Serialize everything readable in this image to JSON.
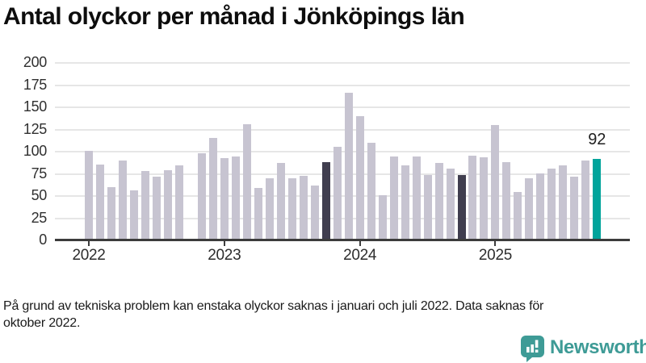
{
  "title": "Antal olyckor per månad i Jönköpings län",
  "footer": {
    "line1": "På grund av tekniska problem kan enstaka olyckor saknas i januari och juli 2022. Data saknas för",
    "line2": "oktober 2022."
  },
  "logo": {
    "name": "Newsworthy"
  },
  "colors": {
    "bar_default": "#c7c4d1",
    "bar_dark": "#403e4f",
    "bar_teal": "#00a49b",
    "axis": "#3c3c3c",
    "grid": "#e6e6e6",
    "logo_teal": "#3e9b96"
  },
  "chart_data": {
    "type": "bar",
    "title": "Antal olyckor per månad i Jönköpings län",
    "x": [
      "2022-01",
      "2022-02",
      "2022-03",
      "2022-04",
      "2022-05",
      "2022-06",
      "2022-07",
      "2022-08",
      "2022-09",
      "2022-10",
      "2022-11",
      "2022-12",
      "2023-01",
      "2023-02",
      "2023-03",
      "2023-04",
      "2023-05",
      "2023-06",
      "2023-07",
      "2023-08",
      "2023-09",
      "2023-10",
      "2023-11",
      "2023-12",
      "2024-01",
      "2024-02",
      "2024-03",
      "2024-04",
      "2024-05",
      "2024-06",
      "2024-07",
      "2024-08",
      "2024-09",
      "2024-10",
      "2024-11",
      "2024-12",
      "2025-01",
      "2025-02",
      "2025-03",
      "2025-04",
      "2025-05",
      "2025-06",
      "2025-07",
      "2025-08",
      "2025-09",
      "2025-10"
    ],
    "values": [
      101,
      86,
      60,
      90,
      56,
      78,
      72,
      79,
      85,
      null,
      98,
      116,
      93,
      95,
      131,
      59,
      70,
      87,
      70,
      73,
      62,
      88,
      106,
      167,
      140,
      110,
      51,
      95,
      85,
      95,
      74,
      87,
      81,
      74,
      96,
      94,
      130,
      88,
      55,
      70,
      76,
      81,
      85,
      72,
      90,
      92
    ],
    "missing_months": [
      "2022-10"
    ],
    "highlight_dark": [
      "2023-10",
      "2024-10"
    ],
    "highlight_teal": [
      "2025-10"
    ],
    "value_label": {
      "month": "2025-10",
      "text": "92"
    },
    "ylim": [
      0,
      200
    ],
    "yticks": [
      0,
      25,
      50,
      75,
      100,
      125,
      150,
      175,
      200
    ],
    "xticks": [
      {
        "label": "2022",
        "month": "2022-01"
      },
      {
        "label": "2023",
        "month": "2023-01"
      },
      {
        "label": "2024",
        "month": "2024-01"
      },
      {
        "label": "2025",
        "month": "2025-01"
      }
    ],
    "grid": true,
    "legend": "none"
  }
}
